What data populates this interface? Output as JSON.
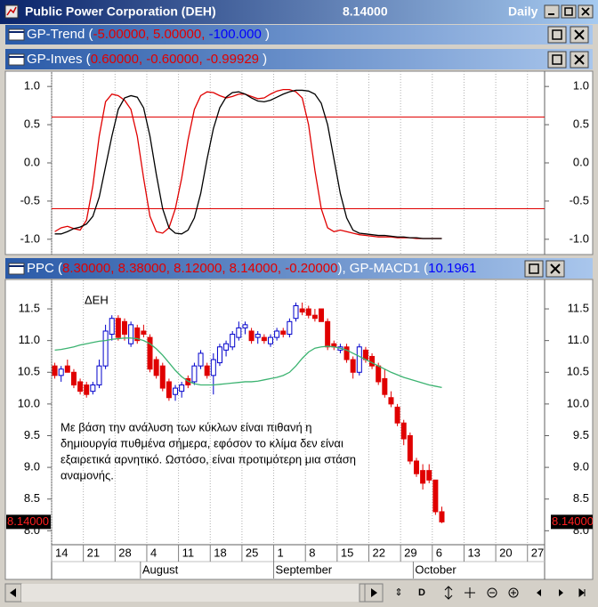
{
  "window": {
    "title": "Public Power Corporation (DEH)",
    "price": "8.14000",
    "period": "Daily"
  },
  "panels": [
    {
      "segments": [
        {
          "text": "GP-Trend (",
          "color": "#ffffff"
        },
        {
          "text": "-5.00000, 5.00000, ",
          "color": "#e00000"
        },
        {
          "text": "-100.000",
          "color": "#0000ff"
        },
        {
          "text": " )",
          "color": "#ffffff"
        }
      ]
    },
    {
      "segments": [
        {
          "text": "GP-Inves (",
          "color": "#ffffff"
        },
        {
          "text": "0.60000, -0.60000, -0.99929",
          "color": "#e00000"
        },
        {
          "text": " )",
          "color": "#ffffff"
        }
      ]
    },
    {
      "segments": [
        {
          "text": "PPC (",
          "color": "#ffffff"
        },
        {
          "text": "8.30000, 8.38000, 8.12000, 8.14000, -0.20000",
          "color": "#e00000"
        },
        {
          "text": "), GP-MACD1 (",
          "color": "#ffffff"
        },
        {
          "text": "10.1961",
          "color": "#0000ff"
        }
      ]
    }
  ],
  "toolbar": {
    "label": "D"
  },
  "chart_data": [
    {
      "type": "line",
      "x": [
        0,
        1,
        2,
        3,
        4,
        5,
        6,
        7,
        8,
        9,
        10,
        11,
        12,
        13,
        14,
        15,
        16,
        17,
        18,
        19,
        20,
        21,
        22,
        23,
        24,
        25,
        26,
        27,
        28,
        29,
        30,
        31,
        32,
        33,
        34,
        35,
        36,
        37,
        38,
        39,
        40,
        41,
        42,
        43,
        44,
        45,
        46,
        47,
        48,
        49,
        50,
        51,
        52,
        53,
        54,
        55,
        56,
        57,
        58,
        59,
        60,
        61
      ],
      "xlim": [
        -0.5,
        77.2
      ],
      "xticks": [
        0,
        5,
        10,
        15,
        20,
        25,
        30,
        35,
        40,
        45,
        50,
        55,
        60,
        65,
        70,
        75
      ],
      "ylim": [
        -1.2,
        1.2
      ],
      "yticks": [
        {
          "value": 1,
          "label": "1.0"
        },
        {
          "value": 0.5,
          "label": "0.5"
        },
        {
          "value": 0,
          "label": "0.0"
        },
        {
          "value": -0.5,
          "label": "-0.5"
        },
        {
          "value": -1,
          "label": "-1.0"
        }
      ],
      "hlines": [
        0.6,
        -0.6
      ],
      "hline_color": "#e00000",
      "grid": true,
      "series": [
        {
          "color": "#e00000",
          "values": [
            -0.9,
            -0.85,
            -0.83,
            -0.86,
            -0.88,
            -0.75,
            -0.3,
            0.35,
            0.8,
            0.9,
            0.88,
            0.82,
            0.7,
            0.35,
            -0.2,
            -0.7,
            -0.9,
            -0.92,
            -0.85,
            -0.6,
            -0.2,
            0.3,
            0.7,
            0.88,
            0.93,
            0.92,
            0.88,
            0.85,
            0.87,
            0.9,
            0.9,
            0.87,
            0.84,
            0.85,
            0.9,
            0.94,
            0.96,
            0.96,
            0.93,
            0.85,
            0.5,
            -0.1,
            -0.6,
            -0.85,
            -0.9,
            -0.88,
            -0.9,
            -0.92,
            -0.94,
            -0.95,
            -0.96,
            -0.97,
            -0.97,
            -0.97,
            -0.98,
            -0.98,
            -0.98,
            -0.99,
            -0.99,
            -0.99,
            -0.99,
            -0.99
          ]
        },
        {
          "color": "#000000",
          "values": [
            -0.93,
            -0.93,
            -0.9,
            -0.86,
            -0.84,
            -0.8,
            -0.7,
            -0.45,
            -0.05,
            0.35,
            0.7,
            0.85,
            0.88,
            0.86,
            0.72,
            0.35,
            -0.15,
            -0.6,
            -0.85,
            -0.92,
            -0.93,
            -0.88,
            -0.72,
            -0.4,
            0.05,
            0.45,
            0.72,
            0.86,
            0.92,
            0.93,
            0.9,
            0.85,
            0.81,
            0.8,
            0.82,
            0.86,
            0.9,
            0.93,
            0.95,
            0.95,
            0.94,
            0.9,
            0.78,
            0.5,
            0.05,
            -0.4,
            -0.72,
            -0.88,
            -0.92,
            -0.93,
            -0.94,
            -0.95,
            -0.95,
            -0.96,
            -0.97,
            -0.97,
            -0.98,
            -0.98,
            -0.99,
            -0.99,
            -0.99,
            -0.99
          ]
        }
      ]
    },
    {
      "type": "candlestick",
      "x": [
        0,
        1,
        2,
        3,
        4,
        5,
        6,
        7,
        8,
        9,
        10,
        11,
        12,
        13,
        14,
        15,
        16,
        17,
        18,
        19,
        20,
        21,
        22,
        23,
        24,
        25,
        26,
        27,
        28,
        29,
        30,
        31,
        32,
        33,
        34,
        35,
        36,
        37,
        38,
        39,
        40,
        41,
        42,
        43,
        44,
        45,
        46,
        47,
        48,
        49,
        50,
        51,
        52,
        53,
        54,
        55,
        56,
        57,
        58,
        59,
        60,
        61
      ],
      "xlim": [
        -0.5,
        77.2
      ],
      "xticks": [
        {
          "value": 0,
          "label": "14"
        },
        {
          "value": 5,
          "label": "21"
        },
        {
          "value": 10,
          "label": "28"
        },
        {
          "value": 15,
          "label": "4"
        },
        {
          "value": 20,
          "label": "11"
        },
        {
          "value": 25,
          "label": "18"
        },
        {
          "value": 30,
          "label": "25"
        },
        {
          "value": 35,
          "label": "1"
        },
        {
          "value": 40,
          "label": "8"
        },
        {
          "value": 45,
          "label": "15"
        },
        {
          "value": 50,
          "label": "22"
        },
        {
          "value": 55,
          "label": "29"
        },
        {
          "value": 60,
          "label": "6"
        },
        {
          "value": 65,
          "label": "13"
        },
        {
          "value": 70,
          "label": "20"
        },
        {
          "value": 75,
          "label": "27"
        }
      ],
      "months": [
        {
          "value": 14,
          "label": "August"
        },
        {
          "value": 35,
          "label": "September"
        },
        {
          "value": 57,
          "label": "October"
        }
      ],
      "ylim": [
        7.78,
        11.95
      ],
      "yticks": [
        11.5,
        {
          "value": 11,
          "label": "11.0"
        },
        10.5,
        {
          "value": 10,
          "label": "10.0"
        },
        9.5,
        {
          "value": 9,
          "label": "9.0"
        },
        8.5,
        {
          "value": 8,
          "label": "8.0"
        }
      ],
      "grid": true,
      "up_color": "#0000cc",
      "down_color": "#e00000",
      "open": [
        10.6,
        10.45,
        10.6,
        10.5,
        10.35,
        10.3,
        10.2,
        10.3,
        10.6,
        11.1,
        11.35,
        11.3,
        10.95,
        11.2,
        11.15,
        11.05,
        10.7,
        10.6,
        10.35,
        10.15,
        10.2,
        10.4,
        10.35,
        10.6,
        10.6,
        10.45,
        10.65,
        10.85,
        10.9,
        11.05,
        11.2,
        11.15,
        11.05,
        11.05,
        10.95,
        11.05,
        11.15,
        11.1,
        11.35,
        11.5,
        11.5,
        11.4,
        11.5,
        11.3,
        10.95,
        10.85,
        10.9,
        10.7,
        10.5,
        10.85,
        10.75,
        10.6,
        10.4,
        10.1,
        9.95,
        9.7,
        9.5,
        9.1,
        8.95,
        8.95,
        8.8,
        8.3
      ],
      "high": [
        10.65,
        10.6,
        10.7,
        10.55,
        10.4,
        10.35,
        10.35,
        10.7,
        11.25,
        11.4,
        11.4,
        11.35,
        11.3,
        11.25,
        11.25,
        11.1,
        10.75,
        10.65,
        10.4,
        10.3,
        10.35,
        10.45,
        10.65,
        10.85,
        10.65,
        10.8,
        10.95,
        11.0,
        11.15,
        11.3,
        11.3,
        11.2,
        11.15,
        11.1,
        11.1,
        11.2,
        11.2,
        11.35,
        11.6,
        11.6,
        11.55,
        11.5,
        11.5,
        11.35,
        11.0,
        10.95,
        10.95,
        10.75,
        10.95,
        10.9,
        10.8,
        10.65,
        10.55,
        10.2,
        10.0,
        9.75,
        9.55,
        9.15,
        9.05,
        9.05,
        8.8,
        8.38
      ],
      "low": [
        10.4,
        10.35,
        10.5,
        10.25,
        10.15,
        10.1,
        10.15,
        10.25,
        10.55,
        11.0,
        11.0,
        11.0,
        10.9,
        10.95,
        11.05,
        10.5,
        10.4,
        10.2,
        10.05,
        10.05,
        10.1,
        10.25,
        10.3,
        10.55,
        10.4,
        10.15,
        10.6,
        10.75,
        10.85,
        11.0,
        11.1,
        10.95,
        10.95,
        10.95,
        10.9,
        11.0,
        11.05,
        11.05,
        11.3,
        11.4,
        11.35,
        11.3,
        11.3,
        10.85,
        10.85,
        10.8,
        10.65,
        10.4,
        10.45,
        10.65,
        10.55,
        10.3,
        10.1,
        9.95,
        9.65,
        9.35,
        9.05,
        8.85,
        8.65,
        8.75,
        8.25,
        8.12
      ],
      "close": [
        10.45,
        10.55,
        10.5,
        10.3,
        10.2,
        10.15,
        10.3,
        10.6,
        11.15,
        11.35,
        11.05,
        11.1,
        11.25,
        11.0,
        11.1,
        10.55,
        10.45,
        10.25,
        10.1,
        10.25,
        10.3,
        10.3,
        10.6,
        10.8,
        10.45,
        10.7,
        10.9,
        10.95,
        11.1,
        11.2,
        11.25,
        11.0,
        11.1,
        11.0,
        11.05,
        11.15,
        11.1,
        11.3,
        11.55,
        11.45,
        11.4,
        11.35,
        11.3,
        10.9,
        10.9,
        10.9,
        10.7,
        10.5,
        10.9,
        10.7,
        10.6,
        10.35,
        10.15,
        10.0,
        9.7,
        9.45,
        9.1,
        8.9,
        8.75,
        8.8,
        8.3,
        8.14
      ],
      "lines": [
        {
          "color": "#3cb371",
          "values": [
            10.85,
            10.86,
            10.88,
            10.9,
            10.93,
            10.95,
            10.97,
            10.99,
            11.0,
            11.02,
            11.03,
            11.04,
            11.04,
            11.03,
            11.0,
            10.95,
            10.87,
            10.77,
            10.65,
            10.53,
            10.43,
            10.36,
            10.32,
            10.3,
            10.3,
            10.3,
            10.31,
            10.32,
            10.33,
            10.34,
            10.35,
            10.35,
            10.36,
            10.38,
            10.4,
            10.42,
            10.45,
            10.5,
            10.6,
            10.72,
            10.82,
            10.88,
            10.9,
            10.91,
            10.9,
            10.88,
            10.85,
            10.8,
            10.75,
            10.7,
            10.65,
            10.6,
            10.55,
            10.5,
            10.46,
            10.42,
            10.39,
            10.36,
            10.33,
            10.3,
            10.28,
            10.26
          ]
        }
      ],
      "last_label": "8.14000",
      "annotation": "ΔΕΗ",
      "note": [
        "Με βάση την ανάλυση των κύκλων είναι πιθανή η",
        "δημιουργία πυθμένα σήμερα, εφόσον το κλίμα δεν είναι",
        "εξαιρετικά αρνητικό. Ωστόσο, είναι προτιμότερη μια στάση",
        "αναμονής."
      ]
    }
  ]
}
